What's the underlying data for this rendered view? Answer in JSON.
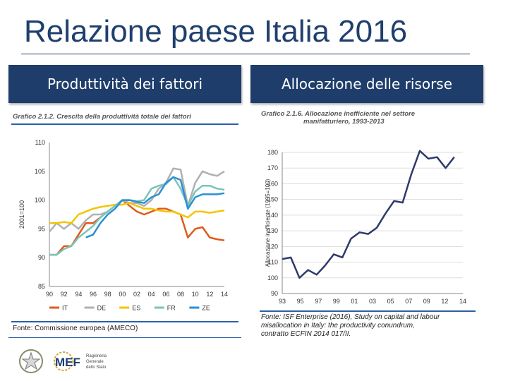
{
  "page": {
    "title": "Relazione paese Italia 2016",
    "left_header": "Produttività dei fattori",
    "right_header": "Allocazione delle risorse",
    "logo_text_big": "MEF",
    "logo_text_small_1": "Ragioneria",
    "logo_text_small_2": "Generale",
    "logo_text_small_3": "dello Stato"
  },
  "chart_data": [
    {
      "type": "line",
      "title": "Grafico 2.1.2. Crescita della produttività totale dei fattori",
      "ylabel": "2001=100",
      "xlabel": "",
      "ylim": [
        85,
        110
      ],
      "yticks": [
        85,
        90,
        95,
        100,
        105,
        110
      ],
      "x": [
        1990,
        1991,
        1992,
        1993,
        1994,
        1995,
        1996,
        1997,
        1998,
        1999,
        2000,
        2001,
        2002,
        2003,
        2004,
        2005,
        2006,
        2007,
        2008,
        2009,
        2010,
        2011,
        2012,
        2013,
        2014
      ],
      "xticklabels": [
        "90",
        "92",
        "94",
        "96",
        "98",
        "00",
        "02",
        "04",
        "06",
        "08",
        "10",
        "12",
        "14"
      ],
      "series": [
        {
          "name": "IT",
          "color": "#e05a1c",
          "values": [
            90.5,
            90.5,
            92,
            92,
            94,
            96,
            96,
            97,
            98,
            99,
            100,
            99,
            98,
            97.5,
            98,
            98.5,
            98.5,
            98,
            97.5,
            93.5,
            95,
            95.3,
            93.5,
            93.2,
            93
          ]
        },
        {
          "name": "DE",
          "color": "#b0b0b0",
          "values": [
            94.5,
            96,
            95,
            96,
            95,
            96.5,
            97.5,
            97.5,
            98,
            99,
            100,
            99.5,
            99.5,
            99,
            100,
            102,
            103,
            105.5,
            105.3,
            99,
            103,
            105,
            104.5,
            104.2,
            105
          ]
        },
        {
          "name": "ES",
          "color": "#f5c400",
          "values": [
            96,
            96,
            96.2,
            96,
            97.5,
            98,
            98.5,
            98.8,
            99,
            99.2,
            99.2,
            99.5,
            99,
            98.5,
            98.5,
            98.2,
            98,
            98,
            97.5,
            97,
            98,
            98,
            97.8,
            98,
            98.2
          ]
        },
        {
          "name": "FR",
          "color": "#78c6b8",
          "values": [
            90.5,
            90.5,
            91.5,
            92,
            93.5,
            94.5,
            95.5,
            97,
            98,
            99,
            100,
            100,
            99.8,
            100,
            102,
            102.5,
            102.8,
            104,
            102,
            99,
            101.5,
            102.5,
            102.5,
            102,
            101.8
          ]
        },
        {
          "name": "ZE",
          "color": "#2b8fd6",
          "values": [
            null,
            null,
            null,
            null,
            null,
            93.5,
            94,
            96,
            97.5,
            98.5,
            100,
            100,
            99.7,
            99.5,
            100.5,
            101,
            103,
            104,
            103.5,
            98.5,
            100.5,
            101,
            101,
            101,
            101.2
          ]
        }
      ],
      "source": "Fonte: Commissione europea (AMECO)"
    },
    {
      "type": "line",
      "title": "Grafico 2.1.6. Allocazione inefficiente nel settore manifatturiero, 1993-2013",
      "title_line1": "Grafico 2.1.6. Allocazione inefficiente nel settore",
      "title_line2": "manifatturiero, 1993-2013",
      "ylabel": "Allocazione inefficiente (1995=100)",
      "xlabel": "",
      "ylim": [
        90,
        180
      ],
      "yticks": [
        90,
        100,
        110,
        120,
        130,
        140,
        150,
        160,
        170,
        180
      ],
      "x": [
        1993,
        1994,
        1995,
        1996,
        1997,
        1998,
        1999,
        2000,
        2001,
        2002,
        2003,
        2004,
        2005,
        2006,
        2007,
        2008,
        2009,
        2010,
        2011,
        2012,
        2013,
        2014
      ],
      "xticklabels": [
        "93",
        "95",
        "97",
        "99",
        "01",
        "03",
        "05",
        "07",
        "09",
        "12",
        "14"
      ],
      "series": [
        {
          "name": "Allocazione inefficiente",
          "color": "#2e3a6b",
          "values": [
            112,
            113,
            100,
            105,
            102,
            108,
            115,
            113,
            125,
            129,
            128,
            132,
            141,
            149,
            148,
            166,
            181,
            176,
            177,
            170,
            177,
            null
          ]
        }
      ],
      "source_line1": "Fonte: ISF Enterprise (2016), Study on capital and labour",
      "source_line2": "misallocation in Italy: the productivity conundrum,",
      "source_line3": "contratto ECFIN 2014 017/II."
    }
  ]
}
